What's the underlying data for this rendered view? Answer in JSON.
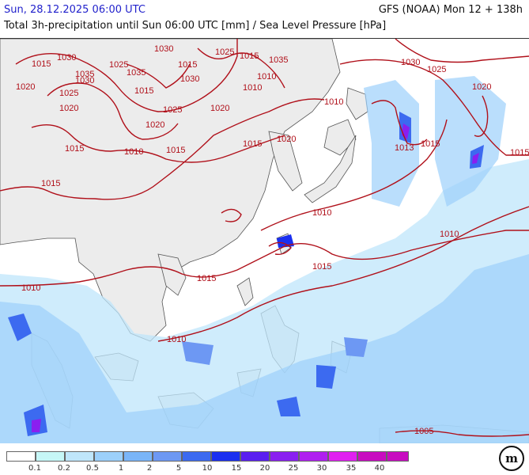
{
  "header": {
    "valid_time": "Sun, 28.12.2025 06:00 UTC",
    "model_run": "GFS (NOAA) Mon 12 + 138h",
    "product": "Total 3h-precipitation until Sun 06:00 UTC [mm] / Sea Level Pressure [hPa]"
  },
  "map": {
    "isobar_labels": [
      "1030",
      "1025",
      "1015",
      "1035",
      "1015",
      "1025",
      "1030",
      "1015",
      "1035",
      "1020",
      "1035",
      "1030",
      "1025",
      "1020",
      "1010",
      "1010",
      "1020",
      "1025",
      "1015",
      "1020",
      "1015",
      "1010",
      "1015",
      "1015",
      "1020",
      "1015",
      "1030",
      "1025",
      "1020",
      "1010",
      "1013",
      "1015",
      "1015",
      "1010",
      "1015",
      "1010",
      "1010",
      "1005"
    ],
    "colors": {
      "land": "#ececec",
      "sea": "#ffffff",
      "isobar": "#b0101a",
      "coast": "#555555"
    }
  },
  "legend": {
    "values": [
      "0.1",
      "0.2",
      "0.5",
      "1",
      "2",
      "5",
      "10",
      "15",
      "20",
      "25",
      "30",
      "35",
      "40"
    ],
    "colors": [
      "#ffffff",
      "#c6f7f7",
      "#bfe6fb",
      "#9cd0fb",
      "#7ab5f8",
      "#6d98f3",
      "#3c6af0",
      "#1a2ff0",
      "#5a1ff0",
      "#8a1ff0",
      "#b01ff0",
      "#e01ff0",
      "#c80cc0"
    ],
    "logo_text": "m"
  }
}
